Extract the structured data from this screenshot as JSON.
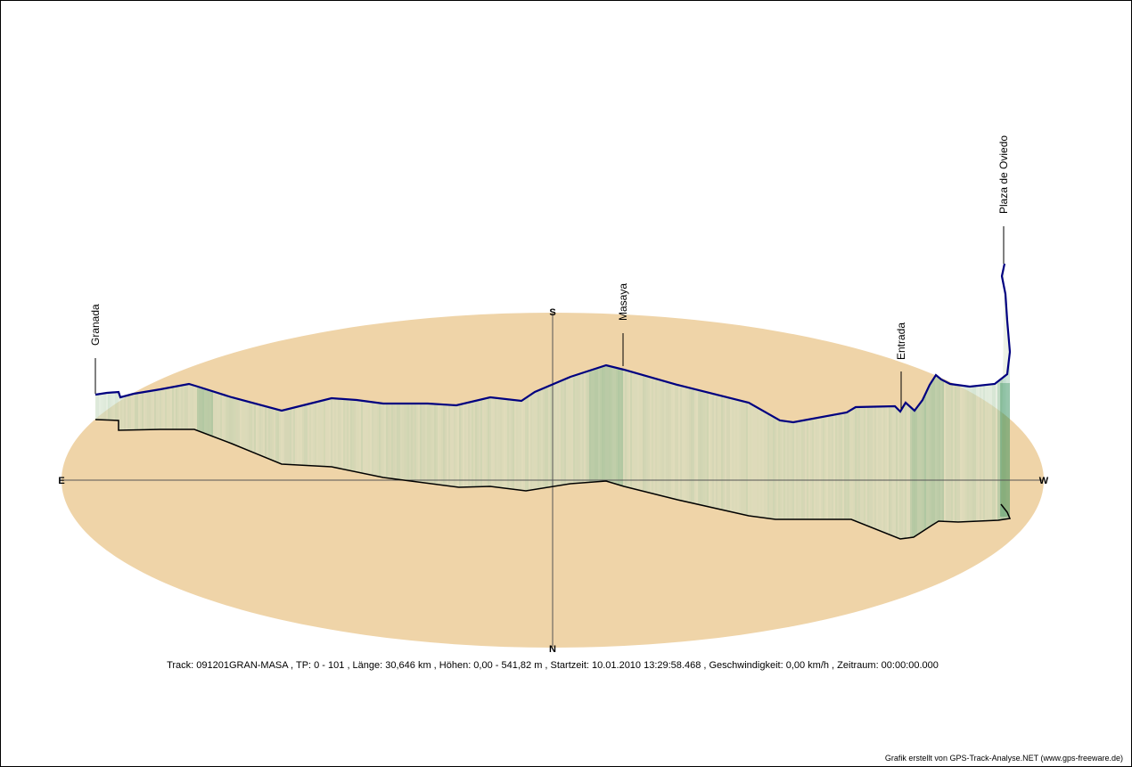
{
  "chart_data": {
    "type": "area",
    "compass": {
      "north": "N",
      "south": "S",
      "east": "E",
      "west": "W"
    },
    "waypoints": [
      {
        "name": "Granada"
      },
      {
        "name": "Masaya"
      },
      {
        "name": "Entrada"
      },
      {
        "name": "Plaza de Oviedo"
      }
    ],
    "colors": {
      "ground": "#efd4a8",
      "track_top": "#000080",
      "track_base": "#000000",
      "fill_green": "#2e8b57"
    }
  },
  "info_text": "Track: 091201GRAN-MASA  ,  TP: 0 - 101  ,  Länge: 30,646 km  ,  Höhen: 0,00 - 541,82 m  ,  Startzeit: 10.01.2010 13:29:58.468  ,  Geschwindigkeit: 0,00 km/h  ,  Zeitraum: 00:00:00.000",
  "credit": "Grafik erstellt von GPS-Track-Analyse.NET (www.gps-freeware.de)"
}
